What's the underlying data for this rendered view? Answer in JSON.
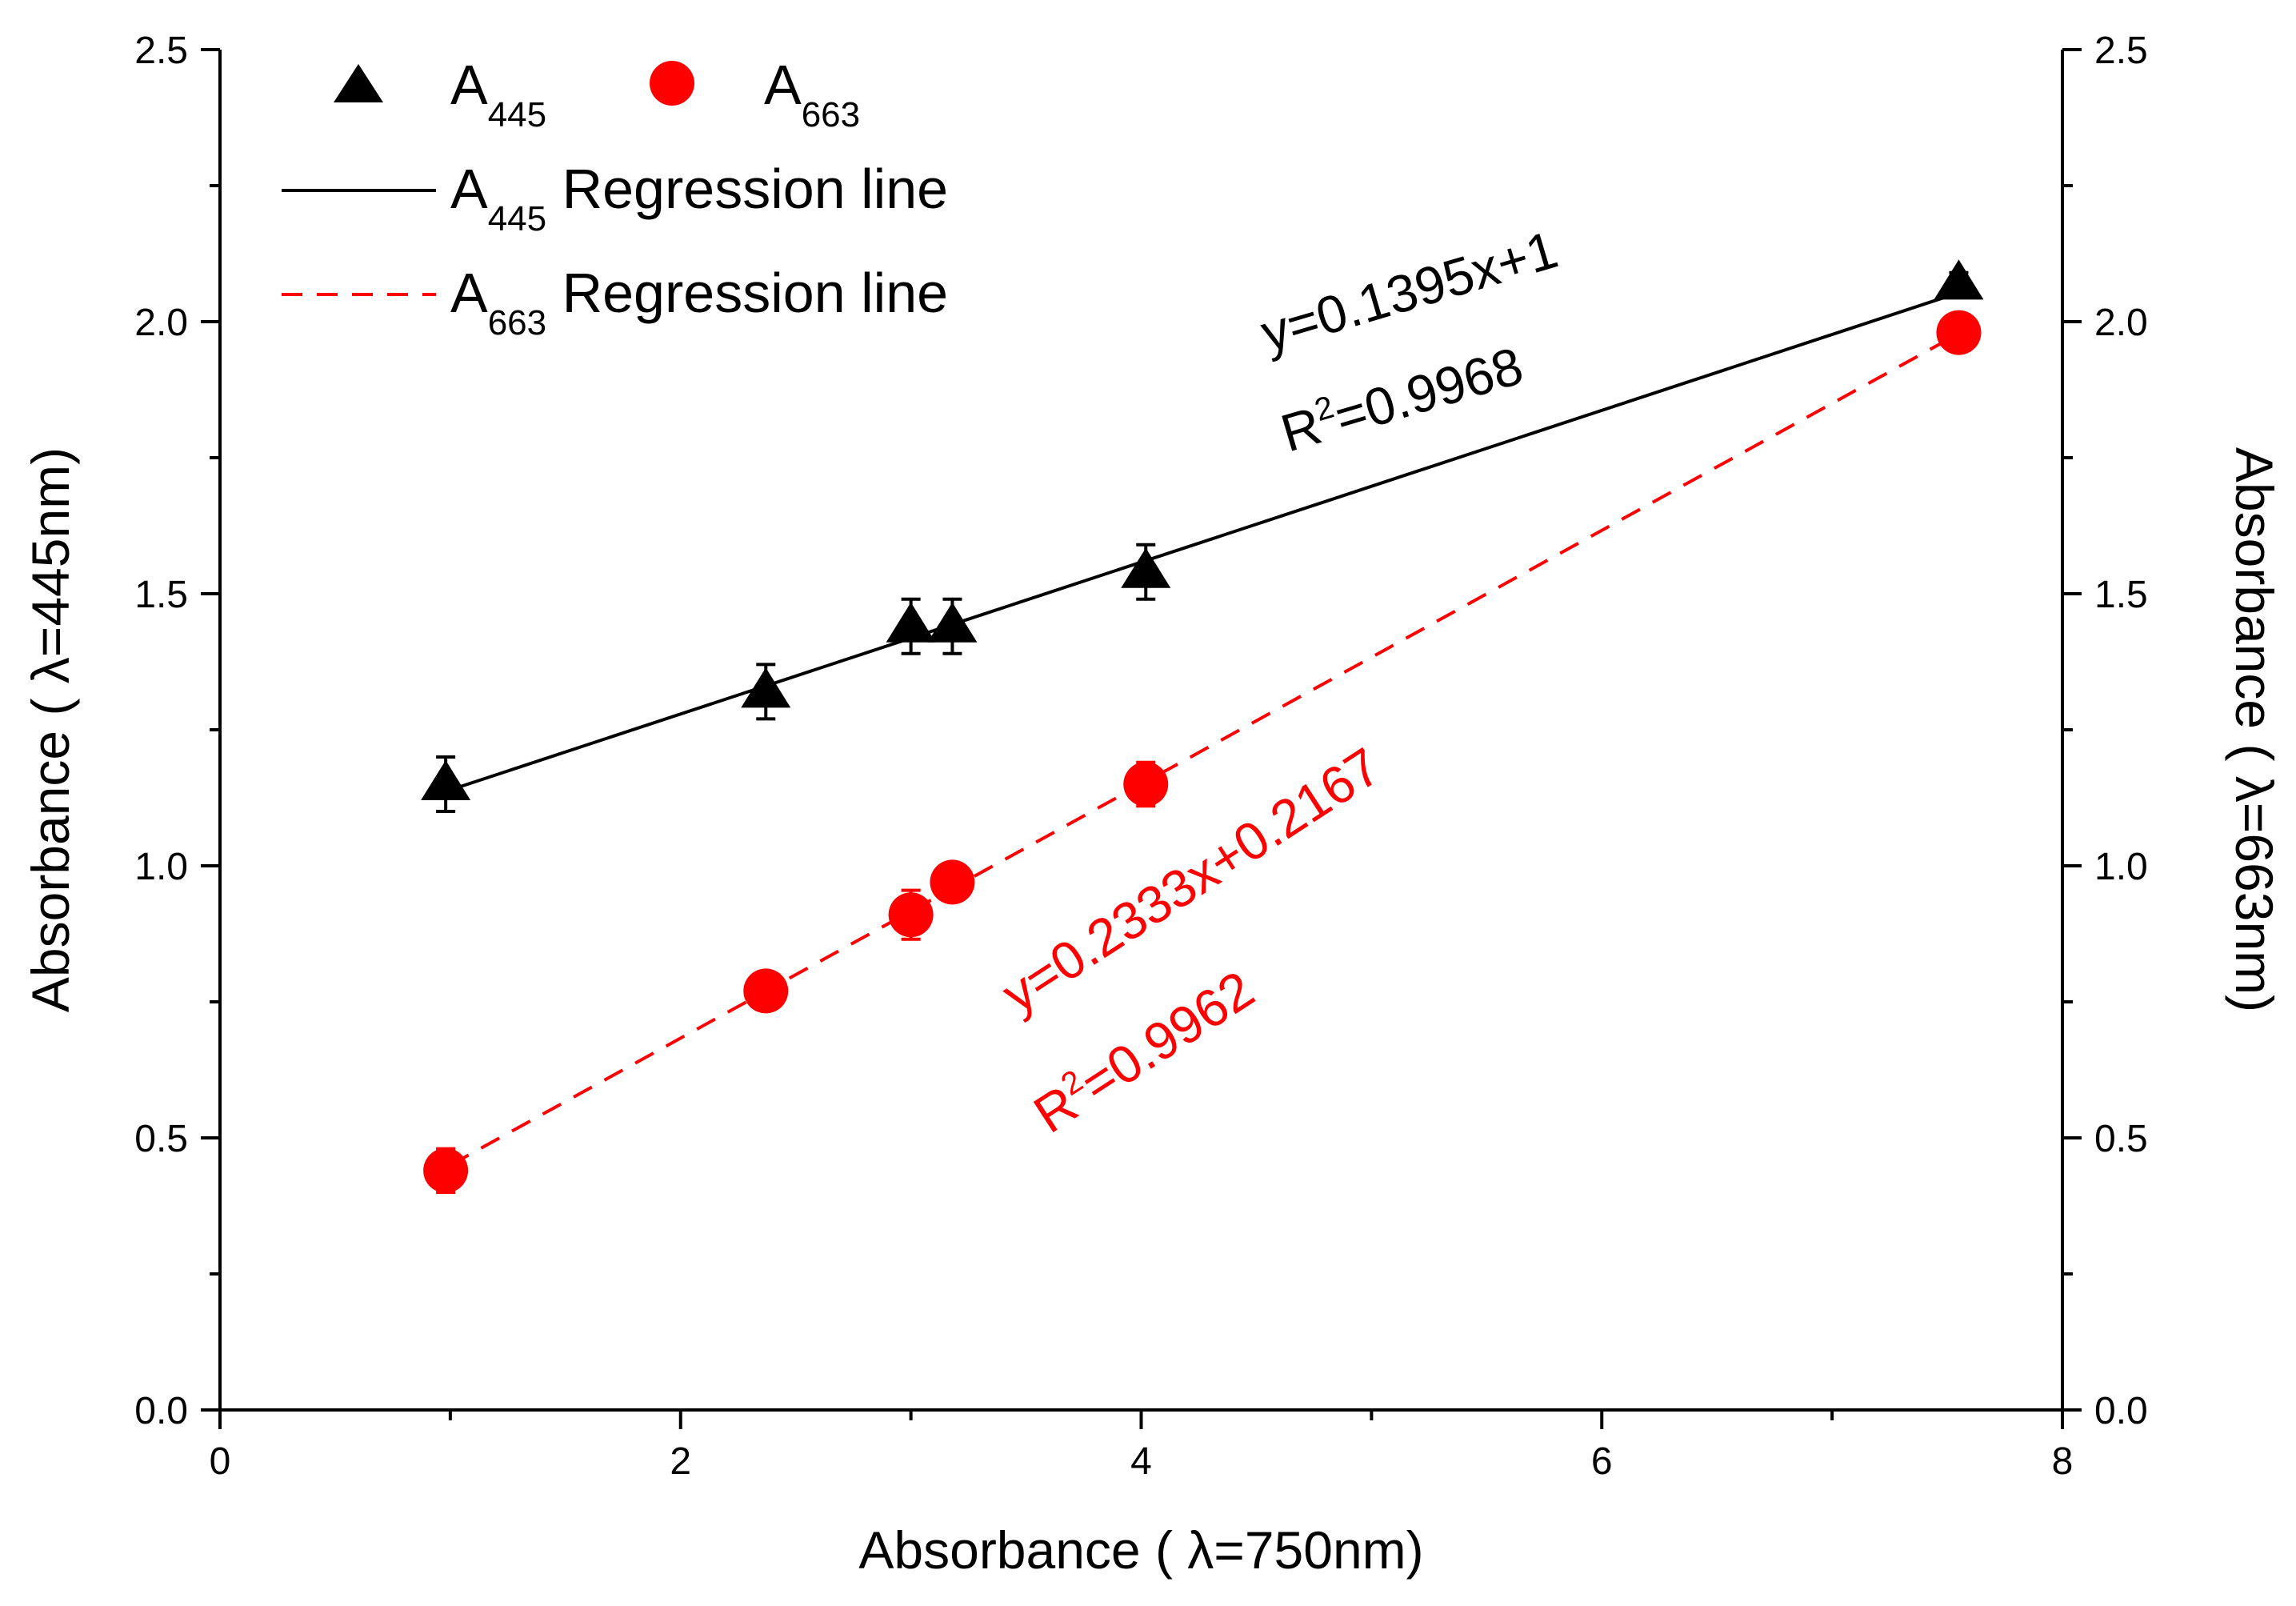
{
  "chart_data": {
    "type": "scatter",
    "x": [
      0.98,
      2.37,
      3.0,
      3.18,
      4.02,
      7.55
    ],
    "series": [
      {
        "name": "A445",
        "legend_main": "A",
        "legend_sub": "445",
        "axis": "left",
        "marker": "triangle",
        "color": "#000000",
        "values": [
          1.15,
          1.32,
          1.44,
          1.44,
          1.54,
          2.07
        ],
        "errors": [
          0.05,
          0.05,
          0.05,
          0.05,
          0.05,
          0.02
        ]
      },
      {
        "name": "A663",
        "legend_main": "A",
        "legend_sub": "663",
        "axis": "right",
        "marker": "circle",
        "color": "#ff0000",
        "values": [
          0.44,
          0.77,
          0.91,
          0.97,
          1.15,
          1.98
        ],
        "errors": [
          0.04,
          0.02,
          0.045,
          0.02,
          0.04,
          0.02
        ]
      }
    ],
    "regression_lines": [
      {
        "legend_main": "A",
        "legend_sub": "445",
        "legend_rest": " Regression line",
        "color": "#000000",
        "style": "solid",
        "slope": 0.1395,
        "intercept": 1,
        "x_range": [
          1.0,
          7.55
        ],
        "equation": "y=0.1395x+1",
        "r2_prefix": "R",
        "r2_sup": "2",
        "r2_value": "=0.9968"
      },
      {
        "legend_main": "A",
        "legend_sub": "663",
        "legend_rest": " Regression line",
        "color": "#ff0000",
        "style": "dashed",
        "slope": 0.2333,
        "intercept": 0.2167,
        "x_range": [
          1.0,
          7.55
        ],
        "equation": "y=0.2333x+0.2167",
        "r2_prefix": "R",
        "r2_sup": "2",
        "r2_value": "=0.9962"
      }
    ],
    "xlabel": "Absorbance ( λ=750nm)",
    "ylabel": "Absorbance ( λ=445nm)",
    "y2label": "Absorbance ( λ=663nm)",
    "xlim": [
      0,
      8
    ],
    "ylim": [
      0,
      2.5
    ],
    "y2lim": [
      0,
      2.5
    ],
    "xticks": [
      "0",
      "2",
      "4",
      "6",
      "8"
    ],
    "yticks": [
      "0.0",
      "0.5",
      "1.0",
      "1.5",
      "2.0",
      "2.5"
    ],
    "y2ticks": [
      "0.0",
      "0.5",
      "1.0",
      "1.5",
      "2.0",
      "2.5"
    ],
    "grid": false,
    "legend_position": "top-left"
  }
}
